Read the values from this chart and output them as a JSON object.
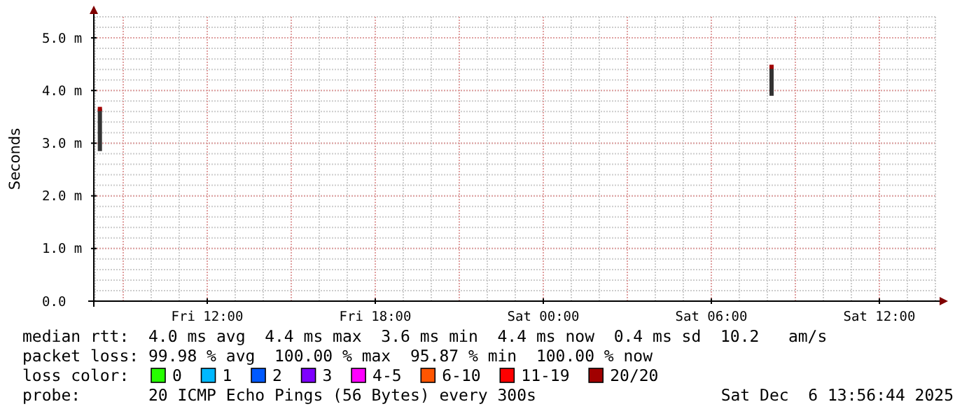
{
  "chart_data": {
    "type": "bar",
    "ylabel": "Seconds",
    "x": [
      "2025-12-05T08:10",
      "2025-12-06T08:09"
    ],
    "series": [
      {
        "color": "#333333",
        "base": [
          2.85,
          3.9
        ],
        "values": [
          0.8,
          0.55
        ]
      },
      {
        "type": "scatter",
        "color": "#a10000",
        "values": [
          3.65,
          4.45
        ]
      },
      {
        "type": "scatter",
        "name": "0",
        "color": "#26ff00",
        "values": [
          null,
          null
        ]
      },
      {
        "type": "scatter",
        "name": "1",
        "color": "#00b8ff",
        "values": [
          null,
          null
        ]
      },
      {
        "type": "scatter",
        "name": "2",
        "color": "#0059ff",
        "values": [
          null,
          null
        ]
      },
      {
        "type": "scatter",
        "name": "3",
        "color": "#7e00ff",
        "values": [
          null,
          null
        ]
      },
      {
        "type": "scatter",
        "name": "4-5",
        "color": "#ff00ff",
        "values": [
          null,
          null
        ]
      },
      {
        "type": "scatter",
        "name": "6-10",
        "color": "#ff5500",
        "values": [
          null,
          null
        ]
      },
      {
        "type": "scatter",
        "name": "11-19",
        "color": "#ff0000",
        "values": [
          null,
          null
        ]
      },
      {
        "type": "scatter",
        "name": "20/20",
        "color": "#a10000",
        "values": [
          null,
          null
        ]
      }
    ],
    "legend_title": "loss color:",
    "legend": "bottom",
    "marker": "square",
    "xlim": [
      "2025-12-05T07:57",
      "2025-12-06T14:03"
    ],
    "xticks": [
      {
        "value": "2025-12-05T12:00",
        "label": "Fri 12:00"
      },
      {
        "value": "2025-12-05T18:00",
        "label": "Fri 18:00"
      },
      {
        "value": "2025-12-06T00:00",
        "label": "Sat 00:00"
      },
      {
        "value": "2025-12-06T06:00",
        "label": "Sat 06:00"
      },
      {
        "value": "2025-12-06T12:00",
        "label": "Sat 12:00"
      }
    ],
    "ylim": [
      0,
      5.4
    ],
    "yticks": [
      {
        "value": 0,
        "label": "0.0"
      },
      {
        "value": 1,
        "label": "1.0 m"
      },
      {
        "value": 2,
        "label": "2.0 m"
      },
      {
        "value": 3,
        "label": "3.0 m"
      },
      {
        "value": 4,
        "label": "4.0 m"
      },
      {
        "value": 5,
        "label": "5.0 m"
      }
    ],
    "grid": true,
    "annotations": [
      "median rtt:  4.0 ms avg  4.4 ms max  3.6 ms min  4.4 ms now  0.4 ms sd  10.2   am/s",
      "packet loss: 99.98 % avg  100.00 % max  95.87 % min  100.00 % now",
      "probe:       20 ICMP Echo Pings (56 Bytes) every 300s",
      "Sat Dec  6 13:56:44 2025"
    ]
  }
}
